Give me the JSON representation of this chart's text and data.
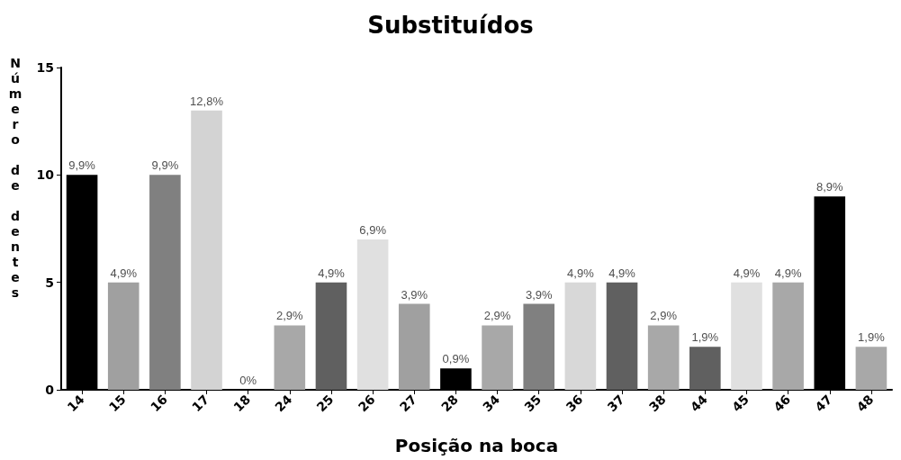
{
  "chart_data": {
    "type": "bar",
    "title": "Substituídos",
    "xlabel": "Posição na boca",
    "ylabel": "Número de dentes",
    "categories": [
      "14",
      "15",
      "16",
      "17",
      "18",
      "24",
      "25",
      "26",
      "27",
      "28",
      "34",
      "35",
      "36",
      "37",
      "38",
      "44",
      "45",
      "46",
      "47",
      "48"
    ],
    "values": [
      10,
      5,
      10,
      13,
      0,
      3,
      5,
      7,
      4,
      1,
      3,
      4,
      5,
      5,
      3,
      2,
      5,
      5,
      9,
      2
    ],
    "annotations": [
      {
        "text": "9,9%",
        "x": "14",
        "y": 10
      },
      {
        "text": "4,9%",
        "x": "15",
        "y": 5
      },
      {
        "text": "9,9%",
        "x": "16",
        "y": 10
      },
      {
        "text": "12,8%",
        "x": "17",
        "y": 13
      },
      {
        "text": "0%",
        "x": "18",
        "y": 0
      },
      {
        "text": "2,9%",
        "x": "24",
        "y": 3
      },
      {
        "text": "4,9%",
        "x": "25",
        "y": 5
      },
      {
        "text": "6,9%",
        "x": "26",
        "y": 7
      },
      {
        "text": "3,9%",
        "x": "27",
        "y": 4
      },
      {
        "text": "0,9%",
        "x": "28",
        "y": 1
      },
      {
        "text": "2,9%",
        "x": "34",
        "y": 3
      },
      {
        "text": "3,9%",
        "x": "35",
        "y": 4
      },
      {
        "text": "4,9%",
        "x": "36",
        "y": 5
      },
      {
        "text": "4,9%",
        "x": "37",
        "y": 5
      },
      {
        "text": "2,9%",
        "x": "38",
        "y": 3
      },
      {
        "text": "1,9%",
        "x": "44",
        "y": 2
      },
      {
        "text": "4,9%",
        "x": "45",
        "y": 5
      },
      {
        "text": "4,9%",
        "x": "46",
        "y": 5
      },
      {
        "text": "8,9%",
        "x": "47",
        "y": 9
      },
      {
        "text": "1,9%",
        "x": "48",
        "y": 2
      }
    ],
    "colors": [
      "#000000",
      "#a0a0a0",
      "#808080",
      "#d3d3d3",
      "#c0c0c0",
      "#a8a8a8",
      "#606060",
      "#e0e0e0",
      "#a0a0a0",
      "#000000",
      "#a8a8a8",
      "#808080",
      "#d8d8d8",
      "#606060",
      "#a8a8a8",
      "#606060",
      "#e0e0e0",
      "#a8a8a8",
      "#000000",
      "#a8a8a8"
    ],
    "ylim": [
      0,
      15
    ],
    "yticks": [
      0,
      5,
      10,
      15
    ],
    "grid": false
  }
}
